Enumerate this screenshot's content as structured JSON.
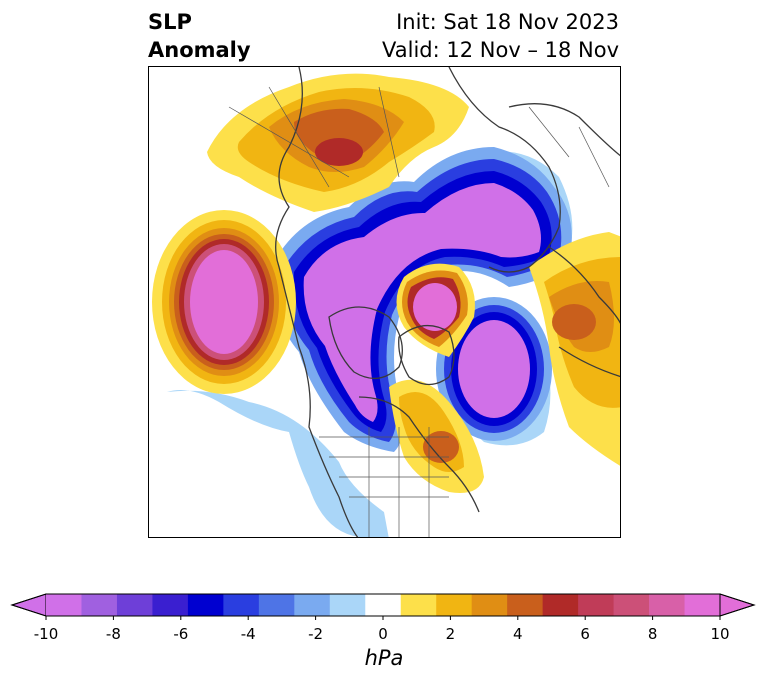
{
  "title": {
    "left_line1": "SLP",
    "left_line2": "Anomaly",
    "right_line1": "Init: Sat 18 Nov 2023",
    "right_line2": "Valid: 12 Nov – 18 Nov"
  },
  "map": {
    "field": "SLP anomaly",
    "projection": "north polar stereographic",
    "features": [
      "coastlines",
      "country borders",
      "US state borders"
    ]
  },
  "colorbar": {
    "unit": "hPa",
    "ticks": [
      "-10",
      "-8",
      "-6",
      "-4",
      "-2",
      "0",
      "2",
      "4",
      "6",
      "8",
      "10"
    ],
    "levels": [
      -10,
      -9,
      -8,
      -7,
      -6,
      -5,
      -4,
      -3,
      -2,
      -1,
      1,
      2,
      3,
      4,
      5,
      6,
      7,
      8,
      9,
      10
    ],
    "colors": [
      "#d070e8",
      "#a060e0",
      "#6e3fd8",
      "#3a1fd0",
      "#0000d0",
      "#2a3ee0",
      "#4e74e6",
      "#7aaaf0",
      "#aad6f8",
      "#ffffff",
      "#fde04a",
      "#f1b512",
      "#e08e14",
      "#c95f1c",
      "#b02a28",
      "#c03c58",
      "#cc5078",
      "#d860a8",
      "#e26ed8"
    ],
    "extend": "both"
  }
}
